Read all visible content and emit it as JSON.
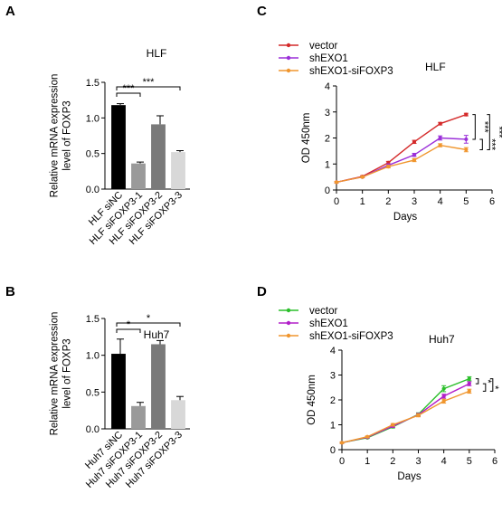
{
  "chart_data": [
    {
      "panel": "A",
      "type": "bar",
      "title": "HLF",
      "ylabel": [
        "Relative mRNA expression",
        "level of FOXP3"
      ],
      "ylim": [
        0,
        1.5
      ],
      "yticks": [
        "0.0",
        "0.5",
        "1.0",
        "1.5"
      ],
      "categories": [
        "HLF siNC",
        "HLF siFOXP3-1",
        "HLF siFOXP3-2",
        "HLF siFOXP3-3"
      ],
      "values": [
        1.18,
        0.36,
        0.91,
        0.52
      ],
      "errors": [
        0.02,
        0.02,
        0.12,
        0.02
      ],
      "colors": [
        "#000000",
        "#9a9a9a",
        "#7a7a7a",
        "#d8d8d8"
      ],
      "significance": [
        {
          "from": 0,
          "to": 1,
          "label": "***"
        },
        {
          "from": 0,
          "to": 3,
          "label": "***"
        }
      ]
    },
    {
      "panel": "B",
      "type": "bar",
      "title": "Huh7",
      "ylabel": [
        "Relative mRNA expression",
        "level of FOXP3"
      ],
      "ylim": [
        0,
        1.5
      ],
      "yticks": [
        "0.0",
        "0.5",
        "1.0",
        "1.5"
      ],
      "categories": [
        "Huh7 siNC",
        "Huh7 siFOXP3-1",
        "Huh7 siFOXP3-2",
        "Huh7 siFOXP3-3"
      ],
      "values": [
        1.02,
        0.31,
        1.15,
        0.39
      ],
      "errors": [
        0.2,
        0.05,
        0.05,
        0.05
      ],
      "colors": [
        "#000000",
        "#9a9a9a",
        "#7a7a7a",
        "#d8d8d8"
      ],
      "significance": [
        {
          "from": 0,
          "to": 1,
          "label": "*"
        },
        {
          "from": 0,
          "to": 3,
          "label": "*"
        }
      ]
    },
    {
      "panel": "C",
      "type": "line",
      "title": "HLF",
      "xlabel": "Days",
      "ylabel": "OD 450nm",
      "xlim": [
        0,
        6
      ],
      "ylim": [
        0,
        4
      ],
      "xticks": [
        "0",
        "1",
        "2",
        "3",
        "4",
        "5",
        "6"
      ],
      "yticks": [
        "0",
        "1",
        "2",
        "3",
        "4"
      ],
      "x": [
        0,
        1,
        2,
        3,
        4,
        5
      ],
      "series": [
        {
          "name": "vector",
          "color": "#d42a2a",
          "values": [
            0.3,
            0.52,
            1.05,
            1.85,
            2.55,
            2.9
          ],
          "errors": [
            0.03,
            0.03,
            0.05,
            0.06,
            0.05,
            0.05
          ]
        },
        {
          "name": "shEXO1",
          "color": "#9b30d9",
          "values": [
            0.3,
            0.5,
            0.95,
            1.35,
            2.0,
            1.95
          ],
          "errors": [
            0.03,
            0.03,
            0.05,
            0.06,
            0.08,
            0.15
          ]
        },
        {
          "name": "shEXO1-siFOXP3",
          "color": "#f0962e",
          "values": [
            0.3,
            0.5,
            0.9,
            1.15,
            1.72,
            1.55
          ],
          "errors": [
            0.03,
            0.03,
            0.05,
            0.06,
            0.06,
            0.08
          ]
        }
      ],
      "significance": [
        "***",
        "***",
        "***"
      ]
    },
    {
      "panel": "D",
      "type": "line",
      "title": "Huh7",
      "xlabel": "Days",
      "ylabel": "OD 450nm",
      "xlim": [
        0,
        6
      ],
      "ylim": [
        0,
        4
      ],
      "xticks": [
        "0",
        "1",
        "2",
        "3",
        "4",
        "5",
        "6"
      ],
      "yticks": [
        "0",
        "1",
        "2",
        "3",
        "4"
      ],
      "x": [
        0,
        1,
        2,
        3,
        4,
        5
      ],
      "series": [
        {
          "name": "vector",
          "color": "#2bbf2b",
          "values": [
            0.28,
            0.48,
            0.92,
            1.42,
            2.45,
            2.85
          ],
          "errors": [
            0.03,
            0.03,
            0.05,
            0.06,
            0.12,
            0.08
          ]
        },
        {
          "name": "shEXO1",
          "color": "#b21fc9",
          "values": [
            0.28,
            0.5,
            0.95,
            1.4,
            2.15,
            2.65
          ],
          "errors": [
            0.03,
            0.03,
            0.05,
            0.06,
            0.08,
            0.08
          ]
        },
        {
          "name": "shEXO1-siFOXP3",
          "color": "#f0962e",
          "values": [
            0.28,
            0.52,
            1.0,
            1.38,
            1.95,
            2.35
          ],
          "errors": [
            0.03,
            0.03,
            0.05,
            0.06,
            0.08,
            0.08
          ]
        }
      ],
      "significance": [
        "*",
        "*",
        "***"
      ]
    }
  ]
}
